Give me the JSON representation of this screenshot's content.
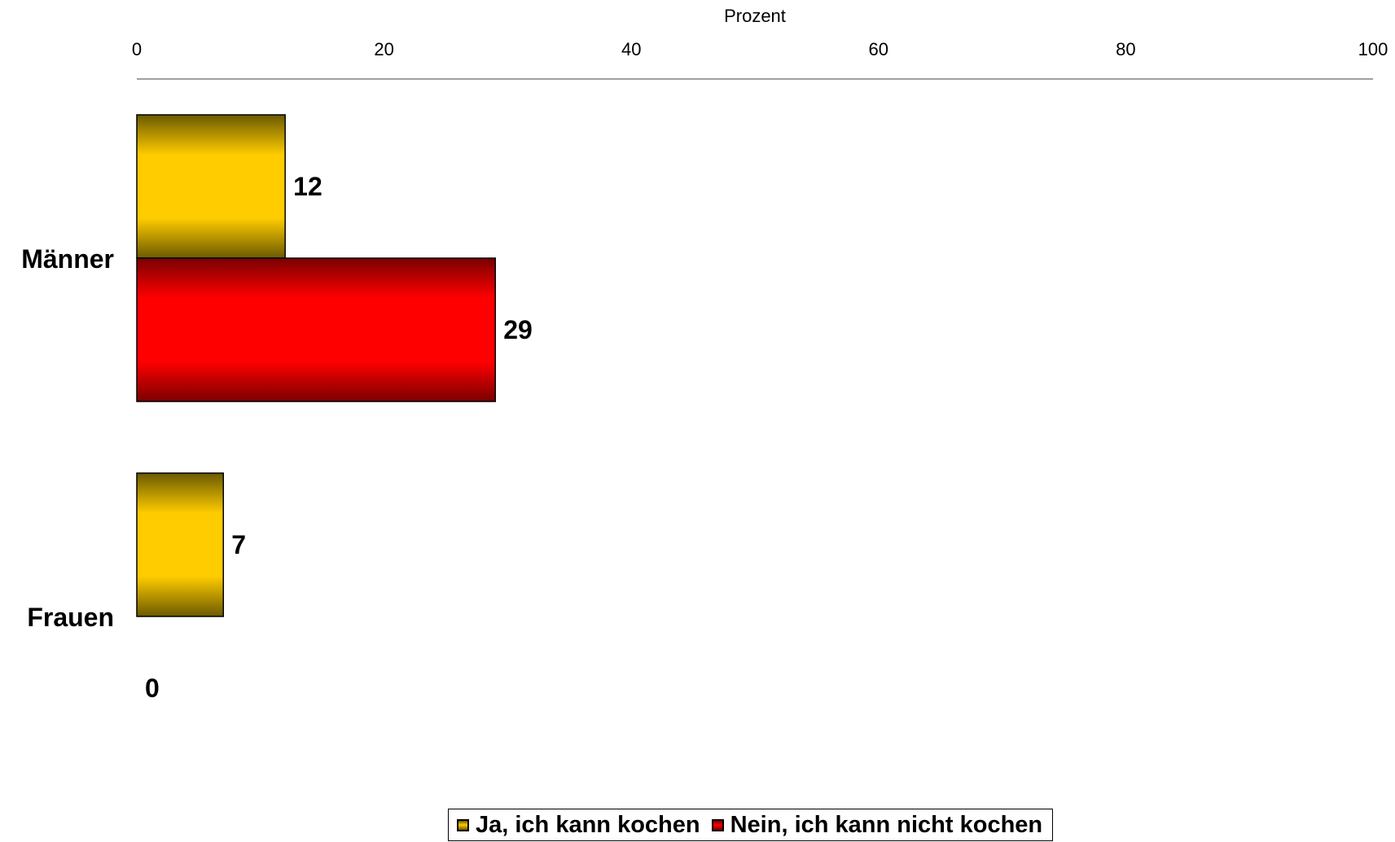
{
  "chart_data": {
    "type": "bar",
    "orientation": "horizontal",
    "title": "",
    "xlabel": "Prozent",
    "ylabel": "",
    "xlim": [
      0,
      100
    ],
    "x_ticks": [
      0,
      20,
      40,
      60,
      80,
      100
    ],
    "axis_position": "top",
    "grid": false,
    "legend_placement": "bottom-center",
    "categories": [
      "Männer",
      "Frauen"
    ],
    "series": [
      {
        "name": "Ja, ich kann kochen",
        "color": "#FFCC00",
        "edge_color": "#6B5A00",
        "values": [
          12,
          7
        ],
        "labels": [
          "12",
          "7"
        ]
      },
      {
        "name": "Nein, ich kann nicht kochen",
        "color": "#FF0000",
        "edge_color": "#7A0000",
        "values": [
          29,
          0
        ],
        "labels": [
          "29",
          "0"
        ]
      }
    ]
  }
}
